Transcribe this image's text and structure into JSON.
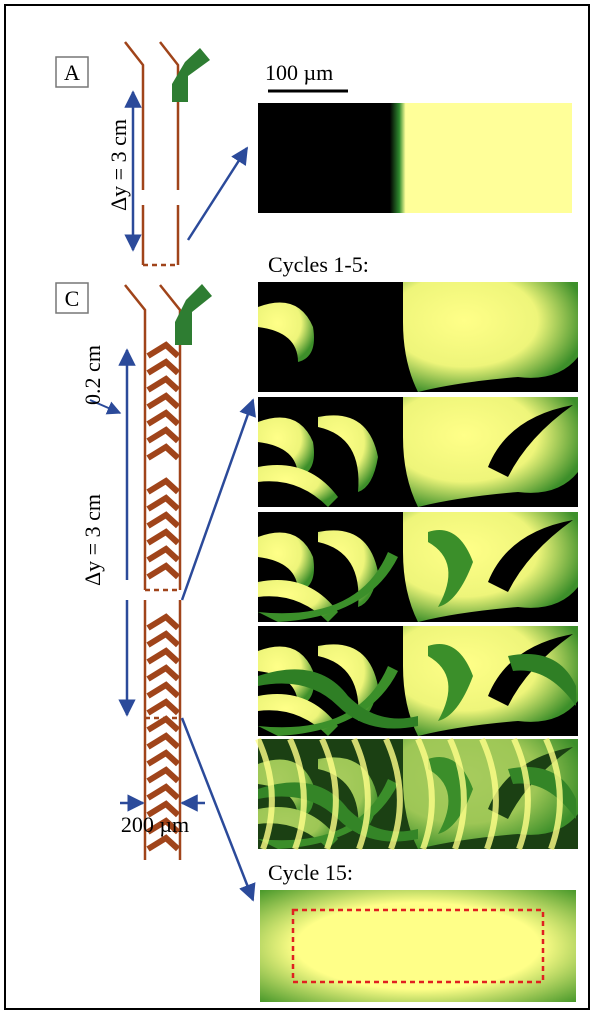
{
  "panel_a": {
    "label": "A",
    "scale_bar": "100 µm",
    "length": "Δy = 3 cm"
  },
  "panel_c": {
    "label": "C",
    "heading": "Cycles 1-5:",
    "groove_pitch": "0.2 cm",
    "length": "Δy = 3 cm",
    "width": "200 µm",
    "final_heading": "Cycle 15:"
  }
}
